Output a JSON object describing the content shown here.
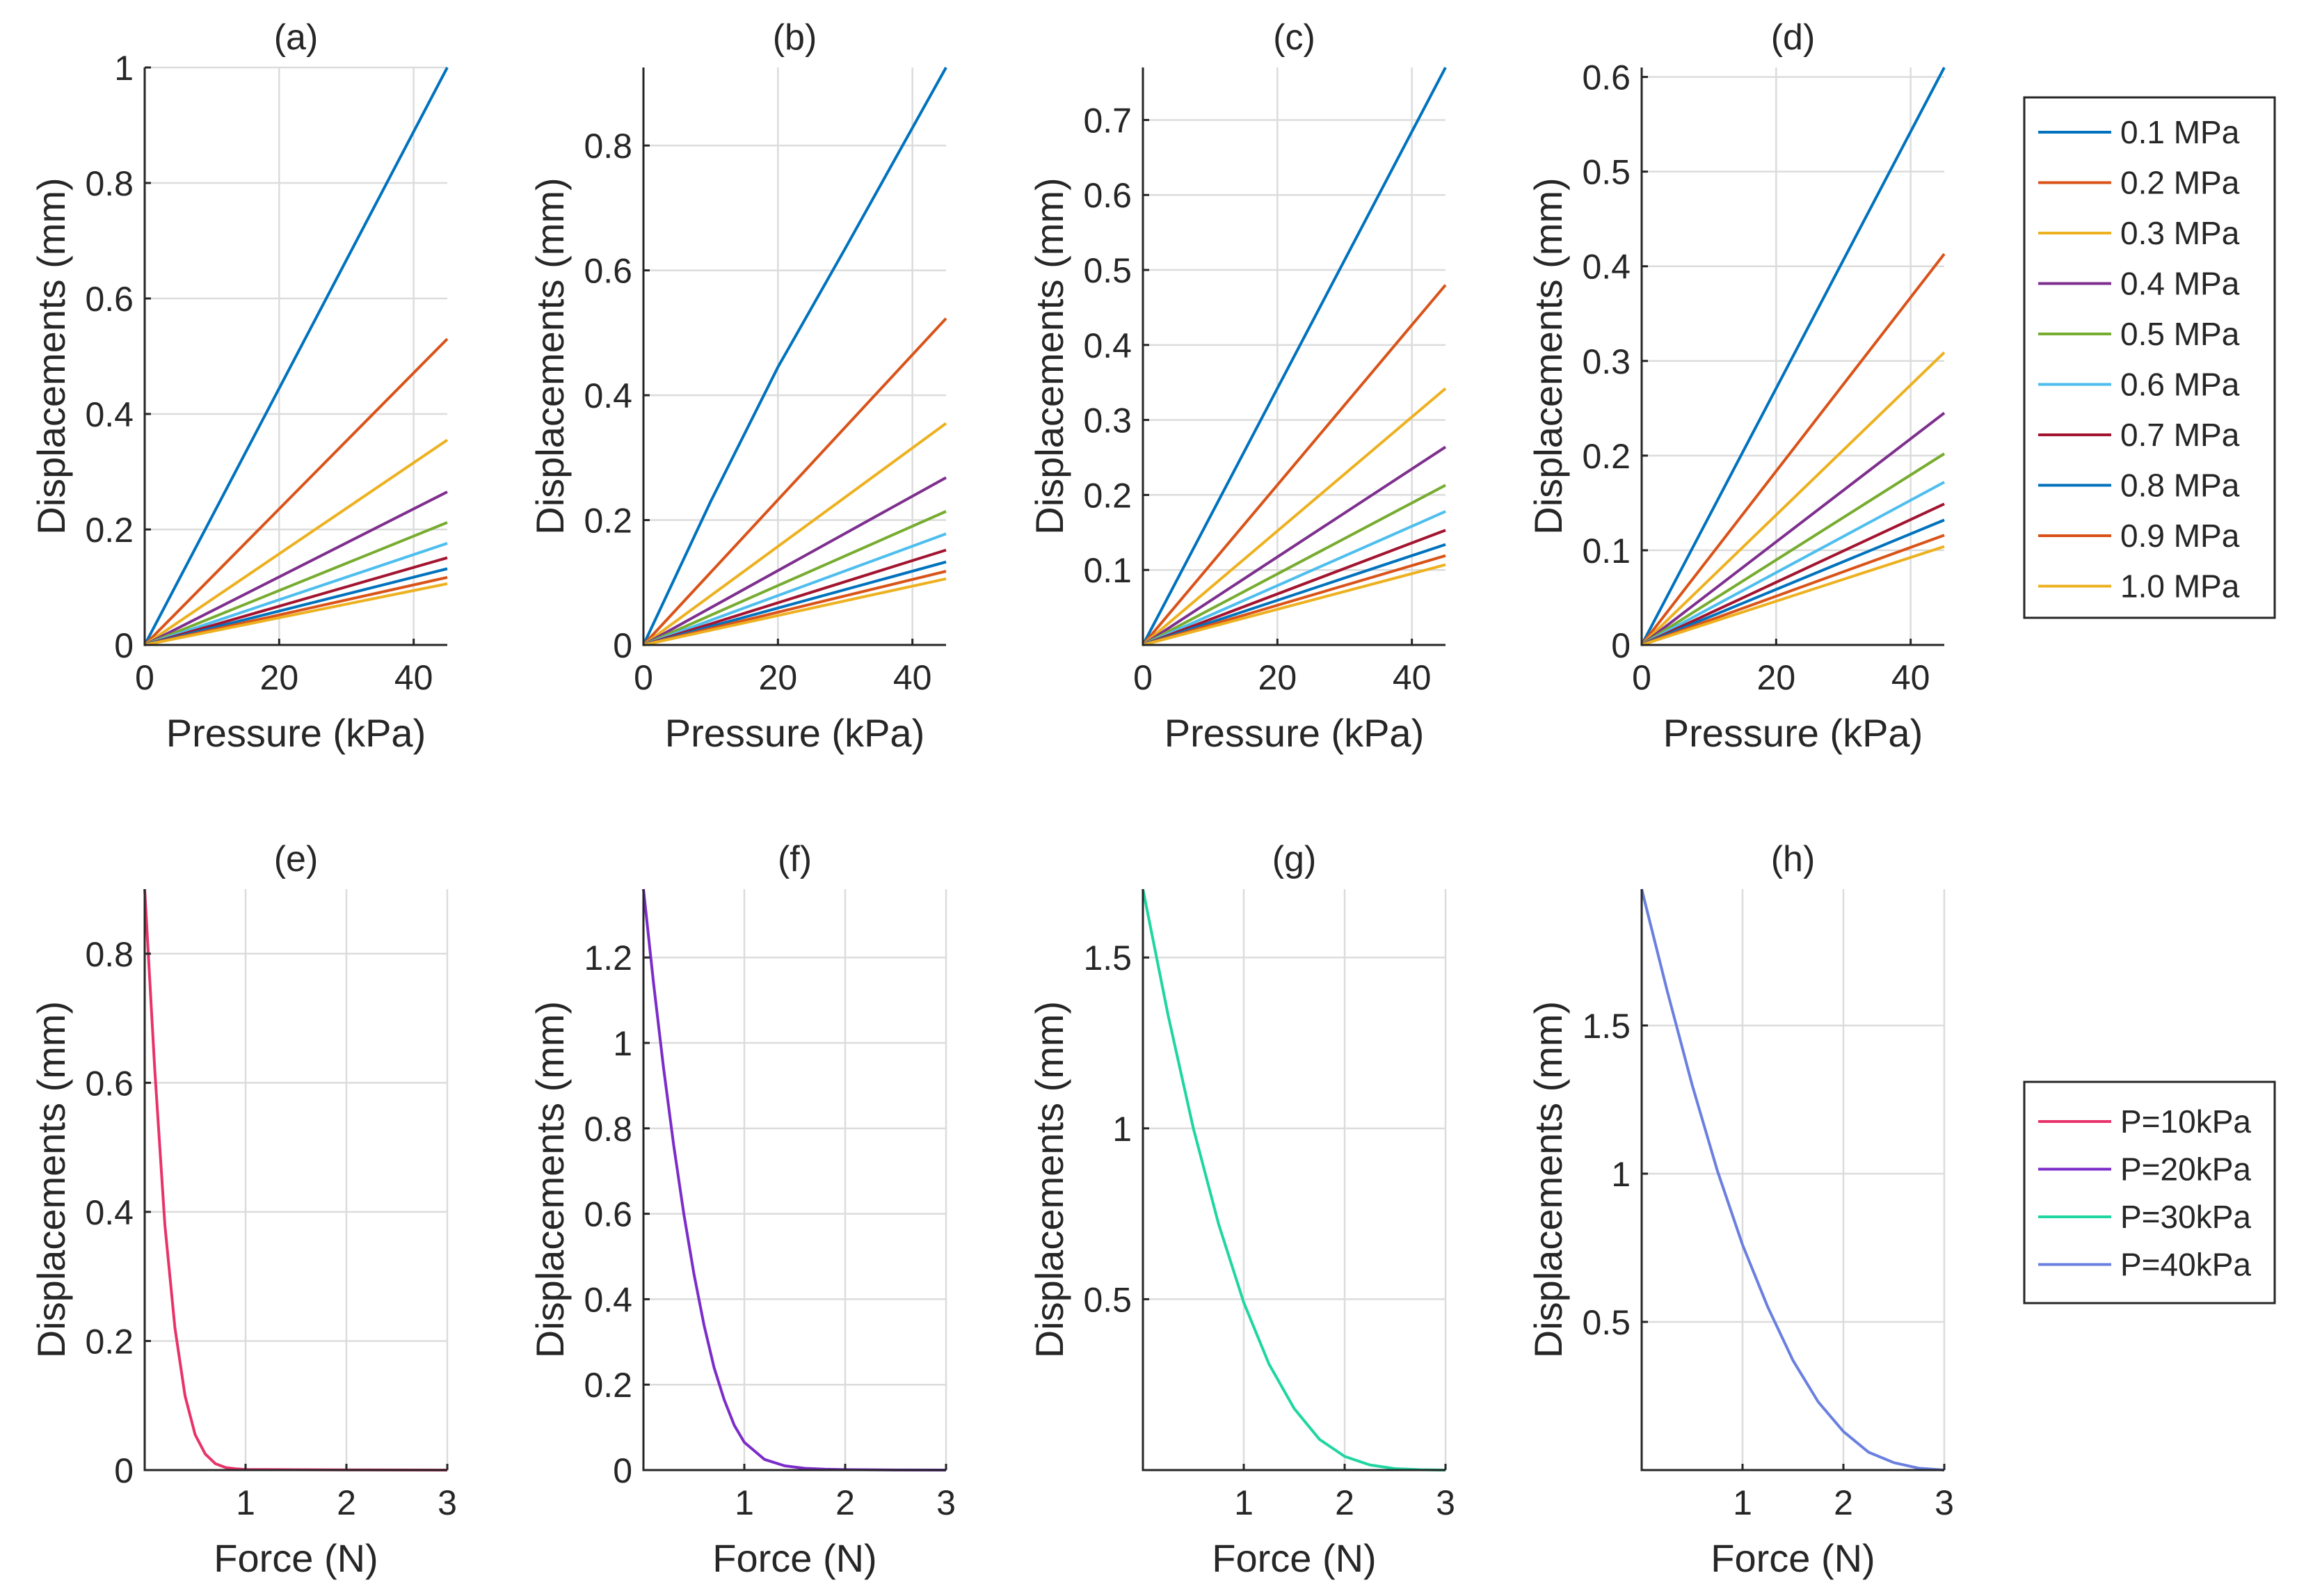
{
  "colors": {
    "mpa_palette": [
      "#0072BD",
      "#D95319",
      "#EDB120",
      "#7E2F8E",
      "#77AC30",
      "#4DBEEE",
      "#A2142F",
      "#0072BD",
      "#D95319",
      "#EDB120"
    ],
    "force_palette": [
      "#E8336A",
      "#7B2CC9",
      "#1FD6A0",
      "#6A7FE0"
    ],
    "grid": "#dcdcdc",
    "axis": "#262626"
  },
  "legends": {
    "stiffness": {
      "entries": [
        "0.1 MPa",
        "0.2 MPa",
        "0.3 MPa",
        "0.4 MPa",
        "0.5 MPa",
        "0.6 MPa",
        "0.7 MPa",
        "0.8 MPa",
        "0.9 MPa",
        "1.0 MPa"
      ]
    },
    "pressure": {
      "entries": [
        "P=10kPa",
        "P=20kPa",
        "P=30kPa",
        "P=40kPa"
      ]
    }
  },
  "chart_data": [
    {
      "panel": "a",
      "type": "line",
      "title": "(a)",
      "xlabel": "Pressure (kPa)",
      "ylabel": "Displacements (mm)",
      "xlim": [
        0,
        45
      ],
      "ylim": [
        0,
        1.0
      ],
      "xticks": [
        0,
        20,
        40
      ],
      "xtick_labels": [
        "0",
        "20",
        "40"
      ],
      "yticks": [
        0,
        0.2,
        0.4,
        0.6,
        0.8,
        1.0
      ],
      "ytick_labels": [
        "0",
        "0.2",
        "0.4",
        "0.6",
        "0.8",
        "1"
      ],
      "series": [
        {
          "name": "0.1 MPa",
          "x": [
            0,
            45
          ],
          "y": [
            0,
            1.0
          ]
        },
        {
          "name": "0.2 MPa",
          "x": [
            0,
            45
          ],
          "y": [
            0,
            0.53
          ]
        },
        {
          "name": "0.3 MPa",
          "x": [
            0,
            45
          ],
          "y": [
            0,
            0.355
          ]
        },
        {
          "name": "0.4 MPa",
          "x": [
            0,
            45
          ],
          "y": [
            0,
            0.265
          ]
        },
        {
          "name": "0.5 MPa",
          "x": [
            0,
            45
          ],
          "y": [
            0,
            0.212
          ]
        },
        {
          "name": "0.6 MPa",
          "x": [
            0,
            45
          ],
          "y": [
            0,
            0.176
          ]
        },
        {
          "name": "0.7 MPa",
          "x": [
            0,
            45
          ],
          "y": [
            0,
            0.151
          ]
        },
        {
          "name": "0.8 MPa",
          "x": [
            0,
            45
          ],
          "y": [
            0,
            0.132
          ]
        },
        {
          "name": "0.9 MPa",
          "x": [
            0,
            45
          ],
          "y": [
            0,
            0.117
          ]
        },
        {
          "name": "1.0 MPa",
          "x": [
            0,
            45
          ],
          "y": [
            0,
            0.106
          ]
        }
      ]
    },
    {
      "panel": "b",
      "type": "line",
      "title": "(b)",
      "xlabel": "Pressure (kPa)",
      "ylabel": "Displacements (mm)",
      "xlim": [
        0,
        45
      ],
      "ylim": [
        0,
        0.925
      ],
      "xticks": [
        0,
        20,
        40
      ],
      "xtick_labels": [
        "0",
        "20",
        "40"
      ],
      "yticks": [
        0,
        0.2,
        0.4,
        0.6,
        0.8
      ],
      "ytick_labels": [
        "0",
        "0.2",
        "0.4",
        "0.6",
        "0.8"
      ],
      "series": [
        {
          "name": "0.1 MPa",
          "x": [
            0,
            10,
            20,
            30,
            45
          ],
          "y": [
            0,
            0.23,
            0.445,
            0.635,
            0.925
          ]
        },
        {
          "name": "0.2 MPa",
          "x": [
            0,
            45
          ],
          "y": [
            0,
            0.523
          ]
        },
        {
          "name": "0.3 MPa",
          "x": [
            0,
            45
          ],
          "y": [
            0,
            0.355
          ]
        },
        {
          "name": "0.4 MPa",
          "x": [
            0,
            45
          ],
          "y": [
            0,
            0.268
          ]
        },
        {
          "name": "0.5 MPa",
          "x": [
            0,
            45
          ],
          "y": [
            0,
            0.214
          ]
        },
        {
          "name": "0.6 MPa",
          "x": [
            0,
            45
          ],
          "y": [
            0,
            0.178
          ]
        },
        {
          "name": "0.7 MPa",
          "x": [
            0,
            45
          ],
          "y": [
            0,
            0.152
          ]
        },
        {
          "name": "0.8 MPa",
          "x": [
            0,
            45
          ],
          "y": [
            0,
            0.133
          ]
        },
        {
          "name": "0.9 MPa",
          "x": [
            0,
            45
          ],
          "y": [
            0,
            0.118
          ]
        },
        {
          "name": "1.0 MPa",
          "x": [
            0,
            45
          ],
          "y": [
            0,
            0.106
          ]
        }
      ]
    },
    {
      "panel": "c",
      "type": "line",
      "title": "(c)",
      "xlabel": "Pressure (kPa)",
      "ylabel": "Displacements (mm)",
      "xlim": [
        0,
        45
      ],
      "ylim": [
        0,
        0.77
      ],
      "xticks": [
        0,
        20,
        40
      ],
      "xtick_labels": [
        "0",
        "20",
        "40"
      ],
      "yticks": [
        0.1,
        0.2,
        0.3,
        0.4,
        0.5,
        0.6,
        0.7
      ],
      "ytick_labels": [
        "0.1",
        "0.2",
        "0.3",
        "0.4",
        "0.5",
        "0.6",
        "0.7"
      ],
      "series": [
        {
          "name": "0.1 MPa",
          "x": [
            0,
            45
          ],
          "y": [
            0,
            0.77
          ]
        },
        {
          "name": "0.2 MPa",
          "x": [
            0,
            45
          ],
          "y": [
            0,
            0.48
          ]
        },
        {
          "name": "0.3 MPa",
          "x": [
            0,
            45
          ],
          "y": [
            0,
            0.342
          ]
        },
        {
          "name": "0.4 MPa",
          "x": [
            0,
            45
          ],
          "y": [
            0,
            0.264
          ]
        },
        {
          "name": "0.5 MPa",
          "x": [
            0,
            45
          ],
          "y": [
            0,
            0.213
          ]
        },
        {
          "name": "0.6 MPa",
          "x": [
            0,
            45
          ],
          "y": [
            0,
            0.178
          ]
        },
        {
          "name": "0.7 MPa",
          "x": [
            0,
            45
          ],
          "y": [
            0,
            0.153
          ]
        },
        {
          "name": "0.8 MPa",
          "x": [
            0,
            45
          ],
          "y": [
            0,
            0.134
          ]
        },
        {
          "name": "0.9 MPa",
          "x": [
            0,
            45
          ],
          "y": [
            0,
            0.119
          ]
        },
        {
          "name": "1.0 MPa",
          "x": [
            0,
            45
          ],
          "y": [
            0,
            0.107
          ]
        }
      ]
    },
    {
      "panel": "d",
      "type": "line",
      "title": "(d)",
      "xlabel": "Pressure (kPa)",
      "ylabel": "Displacements (mm)",
      "xlim": [
        0,
        45
      ],
      "ylim": [
        0,
        0.61
      ],
      "xticks": [
        0,
        20,
        40
      ],
      "xtick_labels": [
        "0",
        "20",
        "40"
      ],
      "yticks": [
        0,
        0.1,
        0.2,
        0.3,
        0.4,
        0.5,
        0.6
      ],
      "ytick_labels": [
        "0",
        "0.1",
        "0.2",
        "0.3",
        "0.4",
        "0.5",
        "0.6"
      ],
      "series": [
        {
          "name": "0.1 MPa",
          "x": [
            0,
            45
          ],
          "y": [
            0,
            0.61
          ]
        },
        {
          "name": "0.2 MPa",
          "x": [
            0,
            45
          ],
          "y": [
            0,
            0.413
          ]
        },
        {
          "name": "0.3 MPa",
          "x": [
            0,
            45
          ],
          "y": [
            0,
            0.309
          ]
        },
        {
          "name": "0.4 MPa",
          "x": [
            0,
            45
          ],
          "y": [
            0,
            0.245
          ]
        },
        {
          "name": "0.5 MPa",
          "x": [
            0,
            45
          ],
          "y": [
            0,
            0.202
          ]
        },
        {
          "name": "0.6 MPa",
          "x": [
            0,
            45
          ],
          "y": [
            0,
            0.172
          ]
        },
        {
          "name": "0.7 MPa",
          "x": [
            0,
            45
          ],
          "y": [
            0,
            0.149
          ]
        },
        {
          "name": "0.8 MPa",
          "x": [
            0,
            45
          ],
          "y": [
            0,
            0.132
          ]
        },
        {
          "name": "0.9 MPa",
          "x": [
            0,
            45
          ],
          "y": [
            0,
            0.116
          ]
        },
        {
          "name": "1.0 MPa",
          "x": [
            0,
            45
          ],
          "y": [
            0,
            0.104
          ]
        }
      ]
    },
    {
      "panel": "e",
      "type": "line",
      "title": "(e)",
      "xlabel": "Force (N)",
      "ylabel": "Displacements (mm)",
      "xlim": [
        0,
        3
      ],
      "ylim": [
        0,
        0.9
      ],
      "xticks": [
        1,
        2,
        3
      ],
      "xtick_labels": [
        "1",
        "2",
        "3"
      ],
      "yticks": [
        0,
        0.2,
        0.4,
        0.6,
        0.8
      ],
      "ytick_labels": [
        "0",
        "0.2",
        "0.4",
        "0.6",
        "0.8"
      ],
      "series": [
        {
          "name": "P=10kPa",
          "x": [
            0,
            0.1,
            0.2,
            0.3,
            0.4,
            0.5,
            0.6,
            0.7,
            0.8,
            0.9,
            1.0,
            1.5,
            2.0,
            2.5,
            3.0
          ],
          "y": [
            0.9,
            0.62,
            0.38,
            0.22,
            0.115,
            0.055,
            0.025,
            0.01,
            0.004,
            0.002,
            0.001,
            0.0005,
            0.0003,
            0.0001,
            0
          ]
        }
      ]
    },
    {
      "panel": "f",
      "type": "line",
      "title": "(f)",
      "xlabel": "Force (N)",
      "ylabel": "Displacements (mm)",
      "xlim": [
        0,
        3
      ],
      "ylim": [
        0,
        1.36
      ],
      "xticks": [
        1,
        2,
        3
      ],
      "xtick_labels": [
        "1",
        "2",
        "3"
      ],
      "yticks": [
        0,
        0.2,
        0.4,
        0.6,
        0.8,
        1.0,
        1.2
      ],
      "ytick_labels": [
        "0",
        "0.2",
        "0.4",
        "0.6",
        "0.8",
        "1",
        "1.2"
      ],
      "series": [
        {
          "name": "P=20kPa",
          "x": [
            0,
            0.1,
            0.2,
            0.3,
            0.4,
            0.5,
            0.6,
            0.7,
            0.8,
            0.9,
            1.0,
            1.2,
            1.4,
            1.6,
            1.8,
            2.0,
            2.5,
            3.0
          ],
          "y": [
            1.36,
            1.14,
            0.94,
            0.76,
            0.6,
            0.46,
            0.34,
            0.24,
            0.165,
            0.105,
            0.065,
            0.025,
            0.01,
            0.004,
            0.002,
            0.001,
            0.0002,
            0
          ]
        }
      ]
    },
    {
      "panel": "g",
      "type": "line",
      "title": "(g)",
      "xlabel": "Force (N)",
      "ylabel": "Displacements (mm)",
      "xlim": [
        0,
        3
      ],
      "ylim": [
        0,
        1.7
      ],
      "xticks": [
        1,
        2,
        3
      ],
      "xtick_labels": [
        "1",
        "2",
        "3"
      ],
      "yticks": [
        0.5,
        1.0,
        1.5
      ],
      "ytick_labels": [
        "0.5",
        "1",
        "1.5"
      ],
      "series": [
        {
          "name": "P=30kPa",
          "x": [
            0,
            0.25,
            0.5,
            0.75,
            1.0,
            1.25,
            1.5,
            1.75,
            2.0,
            2.25,
            2.5,
            2.75,
            3.0
          ],
          "y": [
            1.7,
            1.33,
            1.0,
            0.72,
            0.49,
            0.31,
            0.18,
            0.09,
            0.04,
            0.015,
            0.004,
            0.001,
            0
          ]
        }
      ]
    },
    {
      "panel": "h",
      "type": "line",
      "title": "(h)",
      "xlabel": "Force (N)",
      "ylabel": "Displacements (mm)",
      "xlim": [
        0,
        3
      ],
      "ylim": [
        0,
        1.96
      ],
      "xticks": [
        1,
        2,
        3
      ],
      "xtick_labels": [
        "1",
        "2",
        "3"
      ],
      "yticks": [
        0.5,
        1.0,
        1.5
      ],
      "ytick_labels": [
        "0.5",
        "1",
        "1.5"
      ],
      "series": [
        {
          "name": "P=40kPa",
          "x": [
            0,
            0.25,
            0.5,
            0.75,
            1.0,
            1.25,
            1.5,
            1.75,
            2.0,
            2.25,
            2.5,
            2.75,
            3.0
          ],
          "y": [
            1.96,
            1.62,
            1.3,
            1.01,
            0.76,
            0.55,
            0.37,
            0.23,
            0.13,
            0.06,
            0.025,
            0.006,
            0
          ]
        }
      ]
    }
  ]
}
